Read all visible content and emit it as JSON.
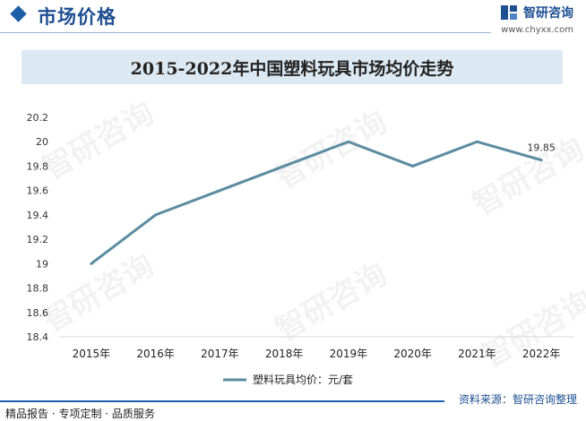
{
  "header": {
    "title": "市场价格",
    "brand_name": "智研咨询",
    "brand_url": "www.chyxx.com"
  },
  "watermark_text": "智研咨询",
  "colors": {
    "series_line": "#5b8ca0",
    "brand_blue": "#1d4f91",
    "title_band": "#dce9f3"
  },
  "footer": {
    "source": "资料来源：智研咨询整理",
    "left": "精品报告 · 专项定制 · 品质服务"
  },
  "chart_data": {
    "type": "line",
    "title": "2015-2022年中国塑料玩具市场均价走势",
    "categories": [
      "2015年",
      "2016年",
      "2017年",
      "2018年",
      "2019年",
      "2020年",
      "2021年",
      "2022年"
    ],
    "series": [
      {
        "name": "塑料玩具均价：元/套",
        "values": [
          19.0,
          19.4,
          19.6,
          19.8,
          20.0,
          19.8,
          20.0,
          19.85
        ]
      }
    ],
    "ylim": [
      18.4,
      20.2
    ],
    "yticks": [
      "18.4",
      "18.6",
      "18.8",
      "19",
      "19.2",
      "19.4",
      "19.6",
      "19.8",
      "20",
      "20.2"
    ],
    "data_labels": [
      {
        "index": 7,
        "text": "19.85"
      }
    ],
    "legend_position": "bottom",
    "grid": false
  }
}
